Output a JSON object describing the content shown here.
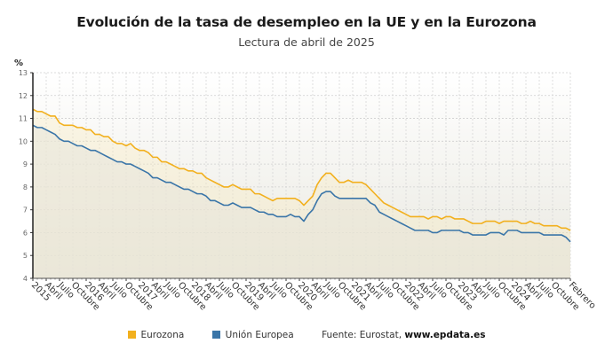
{
  "chart_data": {
    "type": "line",
    "title": "Evolución de la tasa de desempleo en la UE y en la Eurozona",
    "subtitle": "Lectura de abril de 2025",
    "ylabel": "%",
    "xlabel": "",
    "ylim": [
      4,
      13
    ],
    "yticks": [
      4,
      5,
      6,
      7,
      8,
      9,
      10,
      11,
      12,
      13
    ],
    "grid": true,
    "legend_position": "bottom",
    "x_start": "2015-01",
    "x_end": "2025-02",
    "x_tick_labels": [
      "2015",
      "Abril",
      "Julio",
      "Octubre",
      "2016",
      "Abril",
      "Julio",
      "Octubre",
      "2017",
      "Abril",
      "Julio",
      "Octubre",
      "2018",
      "Abril",
      "Julio",
      "Octubre",
      "2019",
      "Abril",
      "Julio",
      "Octubre",
      "2020",
      "Abril",
      "Julio",
      "Octubre",
      "2021",
      "Abril",
      "Julio",
      "Octubre",
      "2022",
      "Abril",
      "Julio",
      "Octubre",
      "2023",
      "Abril",
      "Julio",
      "Octubre",
      "2024",
      "Abril",
      "Julio",
      "Octubre",
      "Febrero"
    ],
    "series": [
      {
        "name": "Eurozona",
        "color": "#f2b01e",
        "values": [
          11.4,
          11.3,
          11.3,
          11.2,
          11.1,
          11.1,
          10.8,
          10.7,
          10.7,
          10.7,
          10.6,
          10.6,
          10.5,
          10.5,
          10.3,
          10.3,
          10.2,
          10.2,
          10.0,
          9.9,
          9.9,
          9.8,
          9.9,
          9.7,
          9.6,
          9.6,
          9.5,
          9.3,
          9.3,
          9.1,
          9.1,
          9.0,
          8.9,
          8.8,
          8.8,
          8.7,
          8.7,
          8.6,
          8.6,
          8.4,
          8.3,
          8.2,
          8.1,
          8.0,
          8.0,
          8.1,
          8.0,
          7.9,
          7.9,
          7.9,
          7.7,
          7.7,
          7.6,
          7.5,
          7.4,
          7.5,
          7.5,
          7.5,
          7.5,
          7.5,
          7.4,
          7.2,
          7.4,
          7.6,
          8.1,
          8.4,
          8.6,
          8.6,
          8.4,
          8.2,
          8.2,
          8.3,
          8.2,
          8.2,
          8.2,
          8.1,
          7.9,
          7.7,
          7.5,
          7.3,
          7.2,
          7.1,
          7.0,
          6.9,
          6.8,
          6.7,
          6.7,
          6.7,
          6.7,
          6.6,
          6.7,
          6.7,
          6.6,
          6.7,
          6.7,
          6.6,
          6.6,
          6.6,
          6.5,
          6.4,
          6.4,
          6.4,
          6.5,
          6.5,
          6.5,
          6.4,
          6.5,
          6.5,
          6.5,
          6.5,
          6.4,
          6.4,
          6.5,
          6.4,
          6.4,
          6.3,
          6.3,
          6.3,
          6.3,
          6.2,
          6.2,
          6.1
        ],
        "values_note": "approx. monthly values read from chart"
      },
      {
        "name": "Unión Europea",
        "color": "#3a75a8",
        "values": [
          10.7,
          10.6,
          10.6,
          10.5,
          10.4,
          10.3,
          10.1,
          10.0,
          10.0,
          9.9,
          9.8,
          9.8,
          9.7,
          9.6,
          9.6,
          9.5,
          9.4,
          9.3,
          9.2,
          9.1,
          9.1,
          9.0,
          9.0,
          8.9,
          8.8,
          8.7,
          8.6,
          8.4,
          8.4,
          8.3,
          8.2,
          8.2,
          8.1,
          8.0,
          7.9,
          7.9,
          7.8,
          7.7,
          7.7,
          7.6,
          7.4,
          7.4,
          7.3,
          7.2,
          7.2,
          7.3,
          7.2,
          7.1,
          7.1,
          7.1,
          7.0,
          6.9,
          6.9,
          6.8,
          6.8,
          6.7,
          6.7,
          6.7,
          6.8,
          6.7,
          6.7,
          6.5,
          6.8,
          7.0,
          7.4,
          7.7,
          7.8,
          7.8,
          7.6,
          7.5,
          7.5,
          7.5,
          7.5,
          7.5,
          7.5,
          7.5,
          7.3,
          7.2,
          6.9,
          6.8,
          6.7,
          6.6,
          6.5,
          6.4,
          6.3,
          6.2,
          6.1,
          6.1,
          6.1,
          6.1,
          6.0,
          6.0,
          6.1,
          6.1,
          6.1,
          6.1,
          6.1,
          6.0,
          6.0,
          5.9,
          5.9,
          5.9,
          5.9,
          6.0,
          6.0,
          6.0,
          5.9,
          6.1,
          6.1,
          6.1,
          6.0,
          6.0,
          6.0,
          6.0,
          6.0,
          5.9,
          5.9,
          5.9,
          5.9,
          5.9,
          5.8,
          5.6
        ]
      }
    ]
  },
  "legend": {
    "items": [
      {
        "label": "Eurozona",
        "color": "#f2b01e"
      },
      {
        "label": "Unión Europea",
        "color": "#3a75a8"
      }
    ],
    "source_prefix": "Fuente: Eurostat, ",
    "source_site": "www.epdata.es"
  }
}
